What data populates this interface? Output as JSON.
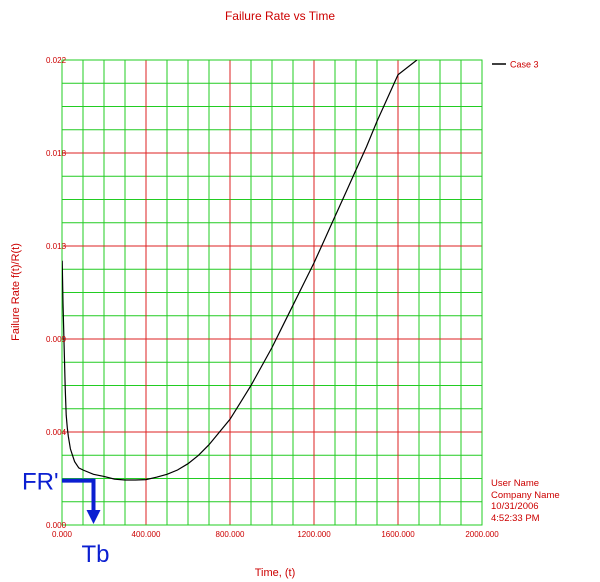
{
  "chart_data": {
    "type": "line",
    "title": "Failure Rate vs Time",
    "xlabel": "Time, (t)",
    "ylabel": "Failure Rate f(t)/R(t)",
    "xlim": [
      0,
      2000
    ],
    "ylim": [
      0,
      0.022
    ],
    "x_ticks": [
      "0.000",
      "400.000",
      "800.000",
      "1200.000",
      "1600.000",
      "2000.000"
    ],
    "y_ticks": [
      "0.000",
      "0.004",
      "0.009",
      "0.013",
      "0.018",
      "0.022"
    ],
    "grid": true,
    "legend_position": "top-right",
    "series": [
      {
        "name": "Case 3",
        "color": "#000000",
        "points": [
          [
            1,
            0.0125
          ],
          [
            5,
            0.0105
          ],
          [
            10,
            0.0085
          ],
          [
            15,
            0.0065
          ],
          [
            20,
            0.0052
          ],
          [
            25,
            0.0046
          ],
          [
            30,
            0.0042
          ],
          [
            40,
            0.0036
          ],
          [
            50,
            0.0033
          ],
          [
            60,
            0.003
          ],
          [
            80,
            0.0027
          ],
          [
            100,
            0.0026
          ],
          [
            150,
            0.0024
          ],
          [
            200,
            0.0023
          ],
          [
            250,
            0.00217
          ],
          [
            300,
            0.00213
          ],
          [
            350,
            0.00213
          ],
          [
            400,
            0.00215
          ],
          [
            450,
            0.00226
          ],
          [
            500,
            0.0024
          ],
          [
            550,
            0.0026
          ],
          [
            600,
            0.0029
          ],
          [
            650,
            0.0033
          ],
          [
            700,
            0.0038
          ],
          [
            750,
            0.0044
          ],
          [
            800,
            0.005
          ],
          [
            850,
            0.0058
          ],
          [
            900,
            0.0066
          ],
          [
            950,
            0.0075
          ],
          [
            1000,
            0.0084
          ],
          [
            1050,
            0.0094
          ],
          [
            1100,
            0.0104
          ],
          [
            1150,
            0.0114
          ],
          [
            1200,
            0.0124
          ],
          [
            1250,
            0.0135
          ],
          [
            1300,
            0.0146
          ],
          [
            1350,
            0.0157
          ],
          [
            1400,
            0.0168
          ],
          [
            1450,
            0.0179
          ],
          [
            1500,
            0.0191
          ],
          [
            1550,
            0.0202
          ],
          [
            1600,
            0.0213
          ],
          [
            1690,
            0.022
          ]
        ]
      }
    ],
    "annotations": [
      {
        "label": "FR'",
        "color": "#0b1fd1",
        "y": 0.0021,
        "x_end": 150
      },
      {
        "label": "Tb",
        "color": "#0b1fd1",
        "x": 150
      }
    ]
  },
  "info_box": {
    "user": "User Name",
    "company": "Company Name",
    "date": "10/31/2006",
    "time": "4:52:33 PM"
  }
}
